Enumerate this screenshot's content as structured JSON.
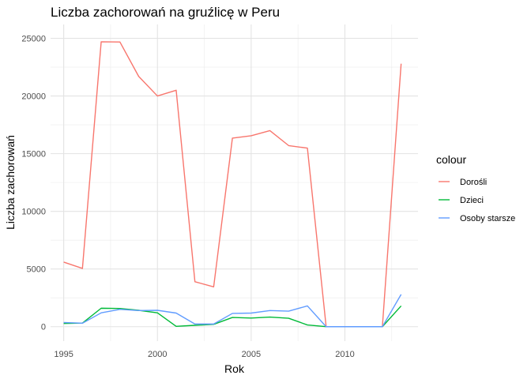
{
  "chart_data": {
    "type": "line",
    "title": "Liczba zachorowań na gruźlicę w Peru",
    "xlabel": "Rok",
    "ylabel": "Liczba zachorowań",
    "xlim": [
      1994.3,
      2013.9
    ],
    "ylim": [
      -1250,
      26200
    ],
    "x_ticks": [
      1995,
      2000,
      2005,
      2010
    ],
    "x_tick_labels": [
      "1995",
      "2000",
      "2005",
      "2010"
    ],
    "y_ticks": [
      0,
      5000,
      10000,
      15000,
      20000,
      25000
    ],
    "y_tick_labels": [
      "0",
      "5000",
      "10000",
      "15000",
      "20000",
      "25000"
    ],
    "grid": true,
    "legend": {
      "title": "colour",
      "position": "right"
    },
    "x": [
      1995,
      1996,
      1997,
      1998,
      1999,
      2000,
      2001,
      2002,
      2003,
      2004,
      2005,
      2006,
      2007,
      2008,
      2009,
      2010,
      2011,
      2012,
      2013
    ],
    "series": [
      {
        "name": "Dorośli",
        "color": "#F8766D",
        "values": [
          5600,
          5050,
          24700,
          24680,
          21700,
          20000,
          20500,
          3900,
          3450,
          16350,
          16550,
          17000,
          15700,
          15480,
          0,
          0,
          0,
          0,
          22800
        ]
      },
      {
        "name": "Dzieci",
        "color": "#00BA38",
        "values": [
          280,
          310,
          1600,
          1580,
          1420,
          1200,
          30,
          120,
          200,
          800,
          750,
          830,
          730,
          150,
          0,
          0,
          0,
          0,
          1800
        ]
      },
      {
        "name": "Osoby starsze",
        "color": "#619CFF",
        "values": [
          360,
          300,
          1200,
          1500,
          1400,
          1420,
          1180,
          230,
          230,
          1150,
          1180,
          1400,
          1350,
          1800,
          0,
          0,
          0,
          0,
          2800
        ]
      }
    ]
  }
}
